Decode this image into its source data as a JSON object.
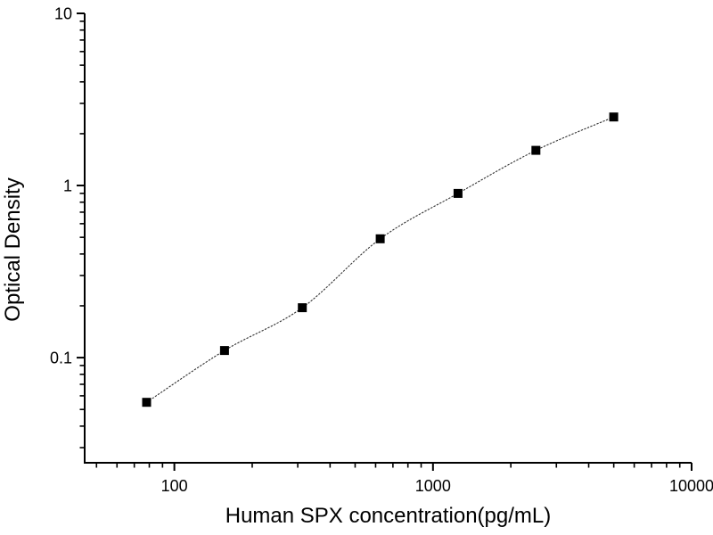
{
  "figure": {
    "background": "#ffffff",
    "ink_color": "#000000"
  },
  "chart_data": {
    "type": "scatter",
    "title": "",
    "xlabel": "Human SPX concentration(pg/mL)",
    "ylabel": "Optical Density",
    "x_scale": "log",
    "y_scale": "log",
    "xlim": [
      45,
      10000
    ],
    "ylim": [
      0.0245,
      10
    ],
    "x_major_ticks": [
      100,
      1000,
      10000
    ],
    "x_tick_labels": [
      "100",
      "1000",
      "10000"
    ],
    "y_major_ticks": [
      0.1,
      1,
      10
    ],
    "y_tick_labels": [
      "0.1",
      "1",
      "10"
    ],
    "grid": false,
    "legend": false,
    "axis_style": "left-bottom-only",
    "series": [
      {
        "name": "standard-curve",
        "marker": "filled-square",
        "marker_color": "#000000",
        "line_style": "dotted-spline",
        "line_color": "#333333",
        "points": [
          {
            "x": 78.125,
            "y": 0.055
          },
          {
            "x": 156.25,
            "y": 0.11
          },
          {
            "x": 312.5,
            "y": 0.195
          },
          {
            "x": 625,
            "y": 0.49
          },
          {
            "x": 1250,
            "y": 0.9
          },
          {
            "x": 2500,
            "y": 1.6
          },
          {
            "x": 5000,
            "y": 2.5
          }
        ]
      }
    ]
  }
}
